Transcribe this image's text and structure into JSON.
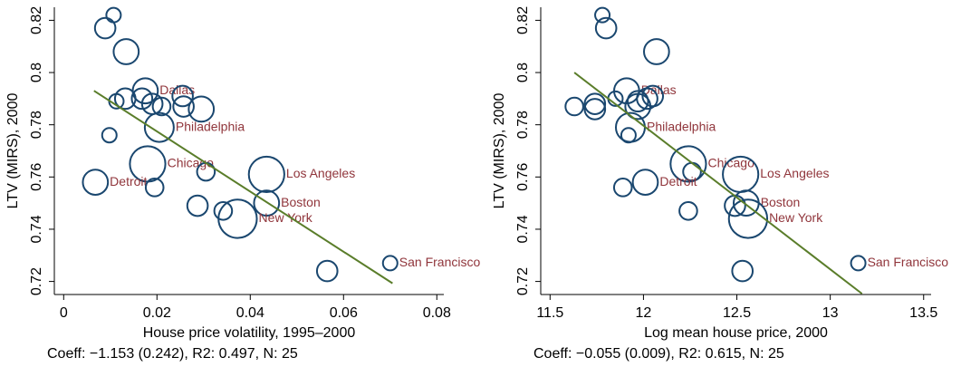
{
  "chart_data": [
    {
      "type": "scatter",
      "x_label": "House price volatility, 1995–2000",
      "y_label": "LTV (MIRS), 2000",
      "annotation": "Coeff: −1.153 (0.242), R2: 0.497, N: 25",
      "color": "#1a476f",
      "label_color": "#90353b",
      "x": [
        0.0107,
        0.0089,
        0.0134,
        0.0175,
        0.0113,
        0.0132,
        0.0168,
        0.019,
        0.021,
        0.0255,
        0.0257,
        0.0295,
        0.0205,
        0.0098,
        0.018,
        0.0305,
        0.0068,
        0.0195,
        0.0435,
        0.0435,
        0.0287,
        0.0342,
        0.0373,
        0.0565,
        0.07
      ],
      "y": [
        0.822,
        0.817,
        0.808,
        0.793,
        0.789,
        0.79,
        0.79,
        0.788,
        0.787,
        0.791,
        0.787,
        0.786,
        0.779,
        0.776,
        0.765,
        0.762,
        0.758,
        0.756,
        0.761,
        0.75,
        0.749,
        0.747,
        0.744,
        0.724,
        0.727
      ],
      "sizes": [
        1,
        2,
        3,
        3,
        1,
        2,
        2,
        2,
        1.5,
        2,
        2,
        3,
        4,
        1,
        6,
        1.5,
        3,
        1.5,
        6,
        3,
        2,
        1.5,
        7,
        2,
        1
      ],
      "labels": [
        null,
        null,
        null,
        "Dallas",
        null,
        null,
        null,
        null,
        null,
        null,
        null,
        null,
        "Philadelphia",
        null,
        "Chicago",
        null,
        "Detroit",
        null,
        "Los Angeles",
        "Boston",
        null,
        null,
        "New York",
        null,
        "San Francisco"
      ],
      "fit": {
        "x": [
          0.0065,
          0.0705
        ],
        "y": [
          0.793,
          0.7193
        ],
        "color": "#5a7d2a"
      },
      "xlim": [
        -0.002,
        0.0815
      ],
      "ylim": [
        0.715,
        0.825
      ],
      "xticks": [
        0,
        0.02,
        0.04,
        0.06,
        0.08
      ],
      "yticks": [
        0.72,
        0.74,
        0.76,
        0.78,
        0.8,
        0.82
      ]
    },
    {
      "type": "scatter",
      "x_label": "Log mean house price, 2000",
      "y_label": "LTV (MIRS), 2000",
      "annotation": "Coeff: −0.055 (0.009), R2: 0.615, N: 25",
      "color": "#1a476f",
      "label_color": "#90353b",
      "x": [
        11.78,
        11.8,
        12.07,
        11.91,
        11.85,
        11.97,
        12.02,
        12.05,
        11.63,
        11.74,
        11.74,
        11.97,
        11.93,
        11.92,
        12.24,
        12.26,
        12.01,
        11.89,
        12.52,
        12.55,
        12.49,
        12.24,
        12.56,
        12.53,
        13.15
      ],
      "y": [
        0.822,
        0.817,
        0.808,
        0.793,
        0.79,
        0.789,
        0.79,
        0.791,
        0.787,
        0.788,
        0.786,
        0.787,
        0.779,
        0.776,
        0.765,
        0.762,
        0.758,
        0.756,
        0.761,
        0.75,
        0.749,
        0.747,
        0.744,
        0.724,
        0.727
      ],
      "sizes": [
        1,
        2,
        3,
        3,
        1,
        2,
        2,
        2,
        1.5,
        2,
        2,
        3,
        4,
        1,
        6,
        1.5,
        3,
        1.5,
        6,
        3,
        2,
        1.5,
        7,
        2,
        1
      ],
      "labels": [
        null,
        null,
        null,
        "Dallas",
        null,
        null,
        null,
        null,
        null,
        null,
        null,
        null,
        "Philadelphia",
        null,
        "Chicago",
        null,
        "Detroit",
        null,
        "Los Angeles",
        "Boston",
        null,
        null,
        "New York",
        null,
        "San Francisco"
      ],
      "fit": {
        "x": [
          11.63,
          13.17
        ],
        "y": [
          0.8,
          0.7153
        ],
        "color": "#5a7d2a"
      },
      "xlim": [
        11.45,
        13.54
      ],
      "ylim": [
        0.715,
        0.825
      ],
      "xticks": [
        11.5,
        12,
        12.5,
        13,
        13.5
      ],
      "yticks": [
        0.72,
        0.74,
        0.76,
        0.78,
        0.8,
        0.82
      ]
    }
  ]
}
